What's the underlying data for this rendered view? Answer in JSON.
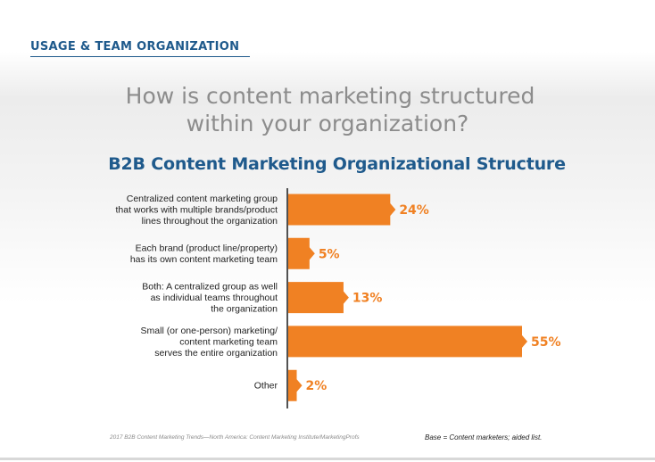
{
  "header": {
    "section_title": "USAGE & TEAM ORGANIZATION",
    "question_line1": "How is content marketing structured",
    "question_line2": "within your organization?"
  },
  "colors": {
    "accent_orange": "#f08123",
    "brand_blue": "#1f5a8c",
    "question_gray": "#8c8c8c"
  },
  "chart_data": {
    "type": "bar",
    "orientation": "horizontal",
    "title": "B2B Content Marketing Organizational Structure",
    "categories": [
      [
        "Centralized content marketing group",
        "that works with multiple brands/product",
        "lines throughout the organization"
      ],
      [
        "Each brand (product line/property)",
        "has its own content marketing team"
      ],
      [
        "Both: A centralized group as well",
        "as individual teams throughout",
        "the organization"
      ],
      [
        "Small (or one-person) marketing/",
        "content marketing team",
        "serves the entire organization"
      ],
      [
        "Other"
      ]
    ],
    "values": [
      24,
      5,
      13,
      55,
      2
    ],
    "value_labels": [
      "24%",
      "5%",
      "13%",
      "55%",
      "2%"
    ],
    "xlim": [
      0,
      55
    ],
    "grid": false,
    "legend": "none"
  },
  "footer": {
    "source": "2017 B2B Content Marketing Trends—North America: Content Marketing Institute/MarketingProfs",
    "base": "Base = Content marketers; aided list."
  }
}
